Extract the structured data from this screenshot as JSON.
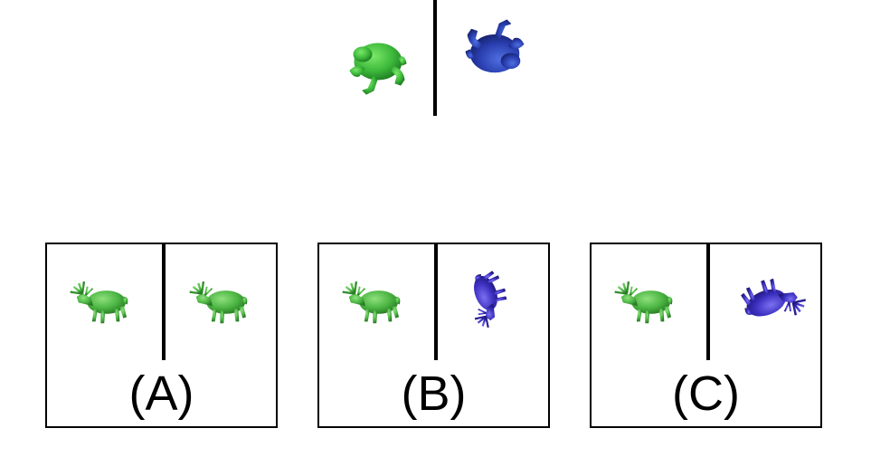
{
  "prompt": {
    "left_item": "frog-icon",
    "right_item": "frog-icon",
    "left_color": "#3cb83a",
    "right_color": "#2a3fb0"
  },
  "options": [
    {
      "label": "(A)",
      "left_item": "deer-icon",
      "right_item": "deer-icon",
      "left_color": "#4bb542",
      "right_color": "#4bb542"
    },
    {
      "label": "(B)",
      "left_item": "deer-icon",
      "right_item": "deer-icon",
      "left_color": "#4bb542",
      "right_color": "#3b2fc0"
    },
    {
      "label": "(C)",
      "left_item": "deer-icon",
      "right_item": "deer-icon",
      "left_color": "#4bb542",
      "right_color": "#3b2fc0"
    }
  ]
}
